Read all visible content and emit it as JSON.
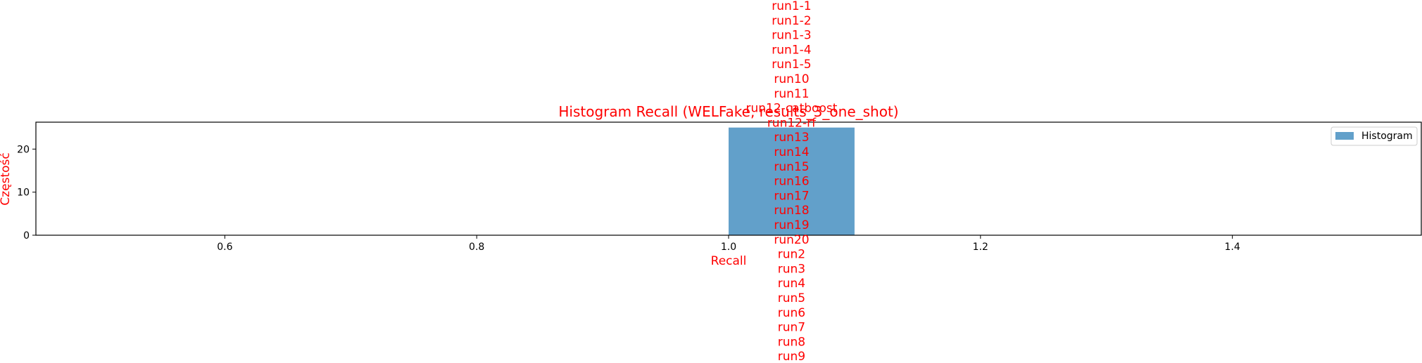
{
  "colors": {
    "bar": "#1f77b4",
    "text_accent": "#ff0000",
    "axis": "#000000",
    "legend_border": "#cccccc"
  },
  "chart_data": {
    "type": "bar",
    "title": "Histogram Recall (WELFake, results_3_one_shot)",
    "xlabel": "Recall",
    "ylabel": "Częstość",
    "xlim": [
      0.45,
      1.55
    ],
    "ylim": [
      0,
      26.25
    ],
    "x_ticks": [
      0.6,
      0.8,
      1.0,
      1.2,
      1.4
    ],
    "x_tick_labels": [
      "0.6",
      "0.8",
      "1.0",
      "1.2",
      "1.4"
    ],
    "y_ticks": [
      0,
      10,
      20
    ],
    "y_tick_labels": [
      "0",
      "10",
      "20"
    ],
    "series": [
      {
        "name": "Histogram",
        "bins": [
          {
            "x0": 1.0,
            "x1": 1.1,
            "count": 25
          }
        ],
        "opacity": 0.7
      }
    ],
    "legend": {
      "position": "top-right",
      "entries": [
        "Histogram"
      ]
    },
    "grid": false,
    "run_labels": [
      "run1-1",
      "run1-2",
      "run1-3",
      "run1-4",
      "run1-5",
      "run10",
      "run11",
      "run12-catboost",
      "run12-rf",
      "run13",
      "run14",
      "run15",
      "run16",
      "run17",
      "run18",
      "run19",
      "run20",
      "run2",
      "run3",
      "run4",
      "run5",
      "run6",
      "run7",
      "run8",
      "run9"
    ]
  }
}
